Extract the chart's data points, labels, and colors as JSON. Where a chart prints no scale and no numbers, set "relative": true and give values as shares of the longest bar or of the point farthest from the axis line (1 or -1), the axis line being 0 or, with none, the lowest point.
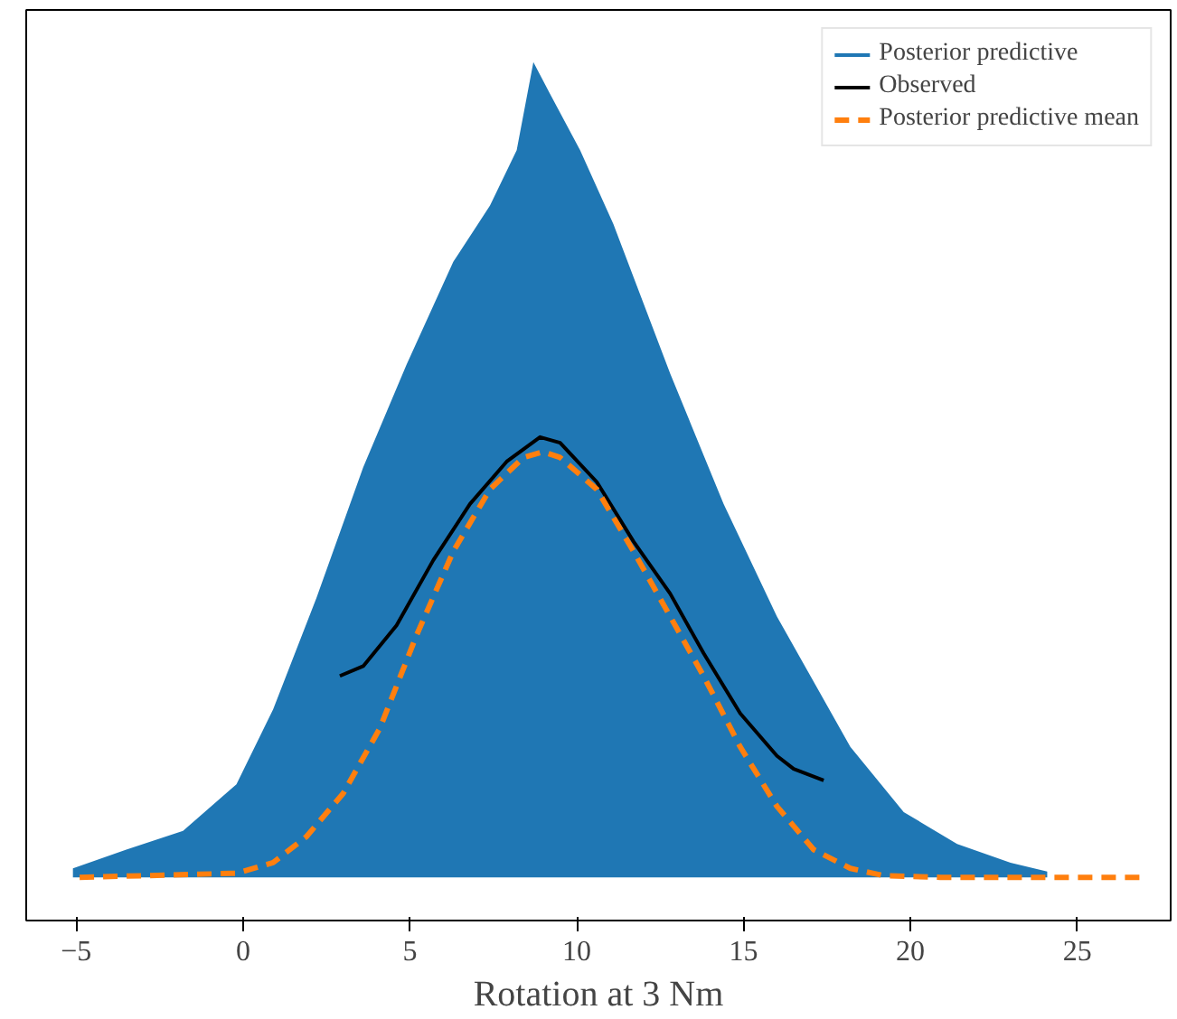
{
  "chart_data": {
    "type": "line",
    "relative": true,
    "xlabel": "Rotation at 3 Nm",
    "xlim": [
      -6.5,
      27.8
    ],
    "xticks": [
      -5,
      0,
      5,
      10,
      15,
      20,
      25
    ],
    "grid": false,
    "legend": "top right",
    "tick_labels": "x",
    "series": [
      {
        "name": "Posterior predictive",
        "type": "area",
        "color": "#1f77b4",
        "x": [
          -5.1,
          -3.5,
          -1.8,
          -0.2,
          0.9,
          2.2,
          3.6,
          4.9,
          6.3,
          7.4,
          8.2,
          8.7,
          9.2,
          10.1,
          11.1,
          12.8,
          14.4,
          16.0,
          18.2,
          19.8,
          21.4,
          23.0,
          24.1
        ],
        "values": [
          0.011,
          0.034,
          0.057,
          0.114,
          0.206,
          0.343,
          0.503,
          0.629,
          0.755,
          0.824,
          0.892,
          1,
          0.961,
          0.892,
          0.801,
          0.618,
          0.458,
          0.32,
          0.16,
          0.08,
          0.041,
          0.018,
          0.007
        ]
      },
      {
        "name": "Observed",
        "color": "#000000",
        "line_style": "solid",
        "x": [
          2.9,
          3.6,
          4.6,
          5.7,
          6.8,
          7.9,
          8.9,
          9.5,
          10.6,
          11.7,
          12.8,
          13.8,
          14.9,
          16.0,
          16.5,
          17.4
        ],
        "values": [
          0.247,
          0.259,
          0.309,
          0.389,
          0.458,
          0.51,
          0.54,
          0.533,
          0.485,
          0.412,
          0.348,
          0.275,
          0.201,
          0.149,
          0.133,
          0.119
        ]
      },
      {
        "name": "Posterior predictive mean",
        "color": "#ff7f0e",
        "line_style": "dashed",
        "x": [
          -4.9,
          -0.2,
          0.9,
          1.9,
          3.0,
          4.1,
          5.2,
          6.3,
          7.4,
          8.4,
          9.0,
          9.5,
          10.6,
          11.7,
          12.8,
          13.8,
          14.9,
          16.0,
          17.1,
          18.2,
          19.2,
          20.9,
          26.9
        ],
        "values": [
          0,
          0.005,
          0.018,
          0.05,
          0.103,
          0.183,
          0.297,
          0.4,
          0.476,
          0.515,
          0.522,
          0.515,
          0.476,
          0.4,
          0.32,
          0.247,
          0.16,
          0.087,
          0.034,
          0.011,
          0.002,
          0,
          0
        ]
      }
    ]
  }
}
